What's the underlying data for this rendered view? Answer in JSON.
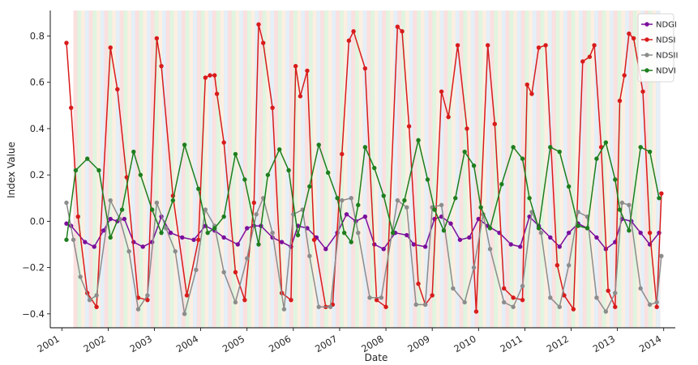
{
  "chart_data": {
    "type": "line",
    "title": "",
    "xlabel": "Date",
    "ylabel": "Index Value",
    "xlim": [
      2000.75,
      2014.25
    ],
    "ylim": [
      -0.46,
      0.91
    ],
    "x_ticks": [
      2001,
      2002,
      2003,
      2004,
      2005,
      2006,
      2007,
      2008,
      2009,
      2010,
      2011,
      2012,
      2013,
      2014
    ],
    "x_tick_labels": [
      "2001",
      "2002",
      "2003",
      "2004",
      "2005",
      "2006",
      "2007",
      "2008",
      "2009",
      "2010",
      "2011",
      "2012",
      "2013",
      "2014"
    ],
    "y_ticks": [
      -0.4,
      -0.2,
      0.0,
      0.2,
      0.4,
      0.6,
      0.8
    ],
    "y_tick_labels": [
      "−0.4",
      "−0.2",
      "0.0",
      "0.2",
      "0.4",
      "0.6",
      "0.8"
    ],
    "grid": false,
    "legend_position": "top-right",
    "season_bands": {
      "start": 2001.25,
      "end": 2013.92,
      "colors": [
        "#f9d6d6",
        "#d6f2d6",
        "#fbead8",
        "#dbeaf5"
      ]
    },
    "series": [
      {
        "name": "NDGI",
        "color": "#7b0f9c",
        "x": [
          2001.1,
          2001.2,
          2001.5,
          2001.7,
          2001.9,
          2002.05,
          2002.2,
          2002.35,
          2002.55,
          2002.75,
          2002.95,
          2003.15,
          2003.35,
          2003.6,
          2003.85,
          2004.1,
          2004.3,
          2004.5,
          2004.8,
          2005.0,
          2005.15,
          2005.3,
          2005.55,
          2005.75,
          2005.95,
          2006.1,
          2006.3,
          2006.5,
          2006.7,
          2006.95,
          2007.15,
          2007.35,
          2007.55,
          2007.75,
          2007.95,
          2008.2,
          2008.45,
          2008.6,
          2008.85,
          2009.05,
          2009.2,
          2009.4,
          2009.6,
          2009.8,
          2010.0,
          2010.2,
          2010.45,
          2010.7,
          2010.9,
          2011.1,
          2011.3,
          2011.55,
          2011.75,
          2011.95,
          2012.15,
          2012.35,
          2012.55,
          2012.75,
          2012.95,
          2013.1,
          2013.3,
          2013.5,
          2013.7,
          2013.9
        ],
        "values": [
          -0.01,
          -0.02,
          -0.09,
          -0.11,
          -0.04,
          0.01,
          0.0,
          0.01,
          -0.09,
          -0.11,
          -0.09,
          0.02,
          -0.05,
          -0.07,
          -0.08,
          -0.02,
          -0.04,
          -0.07,
          -0.1,
          -0.03,
          -0.02,
          -0.02,
          -0.07,
          -0.09,
          -0.11,
          -0.02,
          -0.03,
          -0.07,
          -0.12,
          -0.05,
          0.03,
          0.0,
          0.02,
          -0.1,
          -0.12,
          -0.05,
          -0.06,
          -0.1,
          -0.11,
          0.01,
          0.02,
          -0.01,
          -0.08,
          -0.07,
          0.01,
          -0.02,
          -0.05,
          -0.1,
          -0.11,
          0.02,
          -0.02,
          -0.07,
          -0.11,
          -0.05,
          -0.01,
          -0.03,
          -0.07,
          -0.12,
          -0.09,
          0.01,
          0.0,
          -0.05,
          -0.1,
          -0.05
        ]
      },
      {
        "name": "NDSI",
        "color": "#d81b1b",
        "x": [
          2001.1,
          2001.2,
          2001.35,
          2001.55,
          2001.75,
          2002.05,
          2002.2,
          2002.4,
          2002.65,
          2002.85,
          2003.05,
          2003.15,
          2003.4,
          2003.7,
          2003.95,
          2004.1,
          2004.2,
          2004.3,
          2004.35,
          2004.5,
          2004.75,
          2004.95,
          2005.15,
          2005.25,
          2005.35,
          2005.55,
          2005.75,
          2005.95,
          2006.05,
          2006.15,
          2006.3,
          2006.45,
          2006.7,
          2006.85,
          2007.05,
          2007.2,
          2007.3,
          2007.55,
          2007.8,
          2008.0,
          2008.25,
          2008.35,
          2008.5,
          2008.7,
          2008.85,
          2009.0,
          2009.2,
          2009.35,
          2009.55,
          2009.75,
          2009.95,
          2010.2,
          2010.35,
          2010.55,
          2010.75,
          2010.95,
          2011.05,
          2011.15,
          2011.3,
          2011.45,
          2011.7,
          2011.85,
          2012.05,
          2012.25,
          2012.4,
          2012.5,
          2012.65,
          2012.8,
          2012.95,
          2013.05,
          2013.15,
          2013.25,
          2013.35,
          2013.55,
          2013.7,
          2013.85,
          2013.95
        ],
        "values": [
          0.77,
          0.49,
          0.02,
          -0.31,
          -0.37,
          0.75,
          0.57,
          0.19,
          -0.33,
          -0.34,
          0.79,
          0.67,
          0.11,
          -0.32,
          -0.08,
          0.62,
          0.63,
          0.63,
          0.55,
          0.34,
          -0.22,
          -0.34,
          0.08,
          0.85,
          0.77,
          0.49,
          -0.31,
          -0.34,
          0.67,
          0.54,
          0.65,
          -0.08,
          -0.37,
          -0.36,
          0.29,
          0.78,
          0.82,
          0.66,
          -0.34,
          -0.37,
          0.84,
          0.82,
          0.41,
          -0.27,
          -0.36,
          -0.32,
          0.56,
          0.45,
          0.76,
          0.4,
          -0.39,
          0.76,
          0.42,
          -0.29,
          -0.33,
          -0.34,
          0.59,
          0.55,
          0.75,
          0.76,
          -0.19,
          -0.32,
          -0.38,
          0.69,
          0.71,
          0.76,
          0.32,
          -0.3,
          -0.37,
          0.52,
          0.63,
          0.81,
          0.79,
          0.56,
          -0.05,
          -0.37,
          0.12
        ]
      },
      {
        "name": "NDSII",
        "color": "#8c8c8c",
        "x": [
          2001.1,
          2001.25,
          2001.4,
          2001.6,
          2001.75,
          2002.05,
          2002.25,
          2002.45,
          2002.65,
          2002.85,
          2003.05,
          2003.25,
          2003.45,
          2003.65,
          2003.9,
          2004.1,
          2004.3,
          2004.5,
          2004.75,
          2005.0,
          2005.2,
          2005.35,
          2005.55,
          2005.8,
          2006.0,
          2006.2,
          2006.35,
          2006.55,
          2006.8,
          2007.05,
          2007.25,
          2007.4,
          2007.65,
          2007.9,
          2008.25,
          2008.45,
          2008.65,
          2008.85,
          2009.0,
          2009.2,
          2009.45,
          2009.7,
          2009.9,
          2010.1,
          2010.25,
          2010.55,
          2010.75,
          2010.95,
          2011.15,
          2011.35,
          2011.55,
          2011.75,
          2011.95,
          2012.15,
          2012.35,
          2012.55,
          2012.75,
          2012.95,
          2013.1,
          2013.25,
          2013.5,
          2013.7,
          2013.85,
          2013.95
        ],
        "values": [
          0.08,
          -0.08,
          -0.24,
          -0.34,
          -0.32,
          0.09,
          0.01,
          -0.13,
          -0.38,
          -0.32,
          0.08,
          -0.03,
          -0.13,
          -0.4,
          -0.21,
          0.05,
          -0.02,
          -0.22,
          -0.35,
          -0.16,
          0.03,
          0.1,
          -0.05,
          -0.38,
          0.03,
          0.05,
          -0.15,
          -0.37,
          -0.37,
          0.09,
          0.1,
          -0.05,
          -0.33,
          -0.33,
          0.09,
          0.06,
          -0.36,
          -0.36,
          0.06,
          0.07,
          -0.29,
          -0.35,
          -0.2,
          0.03,
          -0.12,
          -0.35,
          -0.37,
          -0.28,
          0.04,
          -0.05,
          -0.33,
          -0.37,
          -0.19,
          0.04,
          0.02,
          -0.33,
          -0.39,
          -0.31,
          0.08,
          0.07,
          -0.29,
          -0.36,
          -0.35,
          -0.15
        ]
      },
      {
        "name": "NDVI",
        "color": "#1e7e1e",
        "x": [
          2001.1,
          2001.3,
          2001.55,
          2001.8,
          2002.05,
          2002.3,
          2002.55,
          2002.7,
          2002.95,
          2003.15,
          2003.4,
          2003.65,
          2003.95,
          2004.15,
          2004.3,
          2004.5,
          2004.75,
          2004.95,
          2005.25,
          2005.45,
          2005.7,
          2005.9,
          2006.1,
          2006.35,
          2006.55,
          2006.75,
          2006.95,
          2007.1,
          2007.25,
          2007.4,
          2007.55,
          2007.75,
          2007.95,
          2008.15,
          2008.4,
          2008.7,
          2008.9,
          2009.05,
          2009.25,
          2009.5,
          2009.7,
          2009.9,
          2010.05,
          2010.25,
          2010.5,
          2010.75,
          2010.95,
          2011.1,
          2011.3,
          2011.55,
          2011.75,
          2011.95,
          2012.15,
          2012.35,
          2012.55,
          2012.75,
          2012.95,
          2013.05,
          2013.25,
          2013.5,
          2013.7,
          2013.9
        ],
        "values": [
          -0.08,
          0.22,
          0.27,
          0.22,
          -0.07,
          0.05,
          0.3,
          0.2,
          0.05,
          -0.05,
          0.09,
          0.33,
          0.14,
          -0.05,
          -0.03,
          0.02,
          0.29,
          0.18,
          -0.1,
          0.2,
          0.31,
          0.22,
          -0.06,
          0.15,
          0.33,
          0.21,
          0.1,
          -0.05,
          -0.09,
          0.07,
          0.32,
          0.23,
          0.11,
          -0.05,
          0.09,
          0.35,
          0.18,
          0.05,
          -0.04,
          0.1,
          0.3,
          0.24,
          0.06,
          -0.03,
          0.16,
          0.32,
          0.27,
          0.1,
          -0.03,
          0.32,
          0.3,
          0.15,
          -0.02,
          -0.03,
          0.27,
          0.34,
          0.18,
          0.05,
          -0.04,
          0.32,
          0.3,
          0.1
        ]
      }
    ]
  }
}
